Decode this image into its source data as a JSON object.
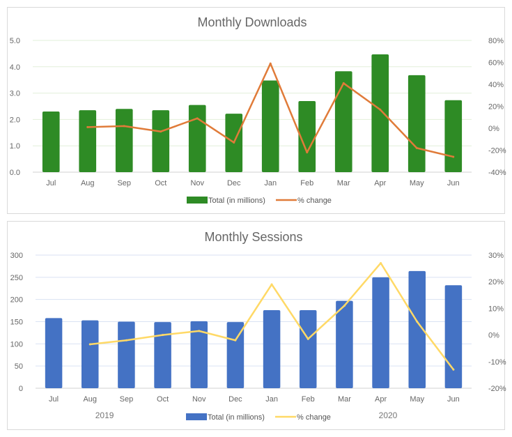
{
  "colors": {
    "downloads_bar": "#2e8b25",
    "downloads_line": "#e07b39",
    "sessions_bar": "#4472c4",
    "sessions_line": "#ffd966",
    "grid_downloads": "#e2efd9",
    "grid_sessions": "#d9e2f3"
  },
  "chart_data": [
    {
      "type": "bar",
      "title": "Monthly Downloads",
      "categories": [
        "Jul",
        "Aug",
        "Sep",
        "Oct",
        "Nov",
        "Dec",
        "Jan",
        "Feb",
        "Mar",
        "Apr",
        "May",
        "Jun"
      ],
      "series": [
        {
          "name": "Total (in millions)",
          "type": "bar",
          "axis": "left",
          "values": [
            2.3,
            2.35,
            2.4,
            2.35,
            2.55,
            2.22,
            3.48,
            2.7,
            3.83,
            4.47,
            3.68,
            2.73
          ]
        },
        {
          "name": "% change",
          "type": "line",
          "axis": "right",
          "values": [
            null,
            1,
            2,
            -3,
            9,
            -13,
            59,
            -22,
            41,
            17,
            -18,
            -26
          ]
        }
      ],
      "y_left": {
        "min": 0,
        "max": 5,
        "ticks": [
          "0.0",
          "1.0",
          "2.0",
          "3.0",
          "4.0",
          "5.0"
        ]
      },
      "y_right": {
        "min": -40,
        "max": 80,
        "ticks": [
          "-40%",
          "-20%",
          "0%",
          "20%",
          "40%",
          "60%",
          "80%"
        ]
      },
      "xlabel": "",
      "ylabel": "",
      "legend": "bottom",
      "grid": true
    },
    {
      "type": "bar",
      "title": "Monthly Sessions",
      "categories": [
        "Jul",
        "Aug",
        "Sep",
        "Oct",
        "Nov",
        "Dec",
        "Jan",
        "Feb",
        "Mar",
        "Apr",
        "May",
        "Jun"
      ],
      "series": [
        {
          "name": "Total (in millions)",
          "type": "bar",
          "axis": "left",
          "values": [
            158,
            153,
            150,
            149,
            151,
            149,
            176,
            176,
            197,
            250,
            264,
            232
          ]
        },
        {
          "name": "% change",
          "type": "line",
          "axis": "right",
          "values": [
            null,
            -3.5,
            -2,
            0,
            1.5,
            -2,
            19,
            -1.5,
            11,
            27,
            5,
            -13
          ]
        }
      ],
      "y_left": {
        "min": 0,
        "max": 300,
        "ticks": [
          "0",
          "50",
          "100",
          "150",
          "200",
          "250",
          "300"
        ]
      },
      "y_right": {
        "min": -20,
        "max": 30,
        "ticks": [
          "-20%",
          "-10%",
          "0%",
          "10%",
          "20%",
          "30%"
        ]
      },
      "year_labels": [
        "2019",
        "2020"
      ],
      "xlabel": "",
      "ylabel": "",
      "legend": "bottom",
      "grid": true
    }
  ]
}
